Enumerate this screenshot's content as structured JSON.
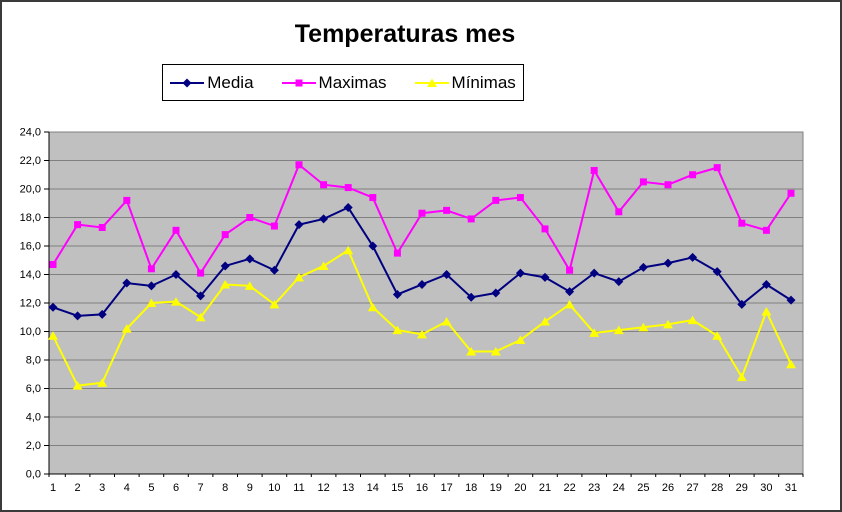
{
  "chart_data": {
    "type": "line",
    "title": "Temperaturas mes",
    "xlabel": "",
    "ylabel": "",
    "x": [
      1,
      2,
      3,
      4,
      5,
      6,
      7,
      8,
      9,
      10,
      11,
      12,
      13,
      14,
      15,
      16,
      17,
      18,
      19,
      20,
      21,
      22,
      23,
      24,
      25,
      26,
      27,
      28,
      29,
      30,
      31
    ],
    "series": [
      {
        "name": "Media",
        "color": "#000080",
        "marker": "diamond",
        "values": [
          11.7,
          11.1,
          11.2,
          13.4,
          13.2,
          14.0,
          12.5,
          14.6,
          15.1,
          14.3,
          17.5,
          17.9,
          18.7,
          16.0,
          12.6,
          13.3,
          14.0,
          12.4,
          12.7,
          14.1,
          13.8,
          12.8,
          14.1,
          13.5,
          14.5,
          14.8,
          15.2,
          14.2,
          11.9,
          13.3,
          12.2
        ]
      },
      {
        "name": "Maximas",
        "color": "#FF00FF",
        "marker": "square",
        "values": [
          14.7,
          17.5,
          17.3,
          19.2,
          14.4,
          17.1,
          14.1,
          16.8,
          18.0,
          17.4,
          21.7,
          20.3,
          20.1,
          19.4,
          15.5,
          18.3,
          18.5,
          17.9,
          19.2,
          19.4,
          17.2,
          14.3,
          21.3,
          18.4,
          20.5,
          20.3,
          21.0,
          21.5,
          17.6,
          17.1,
          19.7
        ]
      },
      {
        "name": "Mínimas",
        "color": "#FFFF00",
        "marker": "triangle",
        "values": [
          9.7,
          6.2,
          6.4,
          10.2,
          12.0,
          12.1,
          11.0,
          13.3,
          13.2,
          11.9,
          13.8,
          14.6,
          15.7,
          11.7,
          10.1,
          9.8,
          10.7,
          8.6,
          8.6,
          9.4,
          10.7,
          11.9,
          9.9,
          10.1,
          10.3,
          10.5,
          10.8,
          9.7,
          6.8,
          11.4,
          7.7
        ]
      }
    ],
    "ylim": [
      0,
      24
    ],
    "ytick_step": 2,
    "y_tick_labels": [
      "0,0",
      "2,0",
      "4,0",
      "6,0",
      "8,0",
      "10,0",
      "12,0",
      "14,0",
      "16,0",
      "18,0",
      "20,0",
      "22,0",
      "24,0"
    ],
    "grid": "horizontal",
    "legend_position": "top",
    "plot_bg": "#C0C0C0",
    "grid_color": "#808080",
    "axis_color": "#000000",
    "text_color": "#000000"
  }
}
